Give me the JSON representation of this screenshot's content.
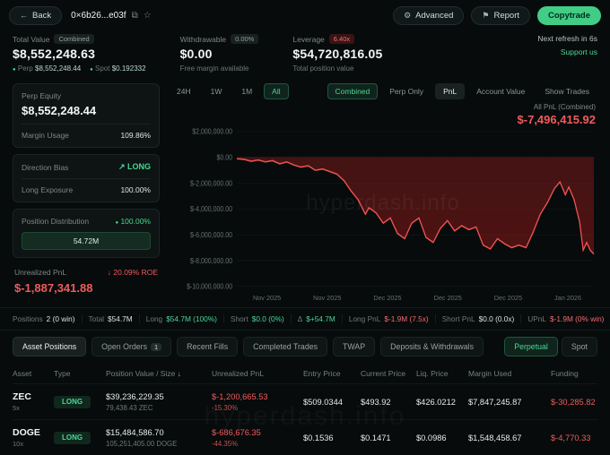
{
  "watermark": "hyperdash.info",
  "topbar": {
    "back": "Back",
    "address": "0×6b26...e03f",
    "advanced": "Advanced",
    "report": "Report",
    "copytrade": "Copytrade"
  },
  "stats": {
    "total_value": {
      "label": "Total Value",
      "tag": "Combined",
      "value": "$8,552,248.63",
      "perp_label": "Perp",
      "perp_value": "$8,552,248.44",
      "spot_label": "Spot",
      "spot_value": "$0.192332"
    },
    "withdrawable": {
      "label": "Withdrawable",
      "tag": "0.00%",
      "value": "$0.00",
      "sub": "Free margin available"
    },
    "leverage": {
      "label": "Leverage",
      "tag": "6.40x",
      "value": "$54,720,816.05",
      "sub": "Total position value"
    },
    "refresh": "Next refresh in 6s",
    "support": "Support us"
  },
  "sidebar": {
    "perp_equity_label": "Perp Equity",
    "perp_equity_value": "$8,552,248.44",
    "margin_usage_label": "Margin Usage",
    "margin_usage_value": "109.86%",
    "direction_label": "Direction Bias",
    "direction_value": "LONG",
    "long_exposure_label": "Long Exposure",
    "long_exposure_value": "100.00%",
    "distribution_label": "Position Distribution",
    "distribution_value": "100.00%",
    "distribution_bar": "54.72M",
    "upnl_label": "Unrealized PnL",
    "upnl_roe": "20.09% ROE",
    "upnl_value": "$-1,887,341.88"
  },
  "chart": {
    "timeframes": [
      "24H",
      "1W",
      "1M",
      "All"
    ],
    "active_timeframe": "All",
    "modes": [
      {
        "label": "Combined",
        "style": "green"
      },
      {
        "label": "Perp Only",
        "style": "plain"
      },
      {
        "label": "PnL",
        "style": "gray"
      },
      {
        "label": "Account Value",
        "style": "plain"
      },
      {
        "label": "Show Trades",
        "style": "plain"
      }
    ],
    "pnl_label": "All PnL (Combined)",
    "pnl_value": "$-7,496,415.92"
  },
  "chart_data": {
    "type": "area",
    "title": "All PnL (Combined)",
    "unit": "USD_millions",
    "ylim": [
      -10,
      2
    ],
    "yticks": [
      {
        "v": 2,
        "label": "$2,000,000.00"
      },
      {
        "v": 0,
        "label": "$0.00"
      },
      {
        "v": -2,
        "label": "$-2,000,000.00"
      },
      {
        "v": -4,
        "label": "$-4,000,000.00"
      },
      {
        "v": -6,
        "label": "$-6,000,000.00"
      },
      {
        "v": -8,
        "label": "$-8,000,000.00"
      },
      {
        "v": -10,
        "label": "$-10,000,000.00"
      }
    ],
    "xticks": [
      "Nov 2025",
      "Nov 2025",
      "Dec 2025",
      "Dec 2025",
      "Dec 2025",
      "Jan 2026"
    ],
    "series": [
      {
        "name": "All PnL (Combined)",
        "color": "#ef5350",
        "final_value_usd": -7496415.92,
        "points": [
          [
            0,
            -0.1
          ],
          [
            2,
            -0.15
          ],
          [
            4,
            -0.3
          ],
          [
            6,
            -0.2
          ],
          [
            8,
            -0.35
          ],
          [
            10,
            -0.25
          ],
          [
            12,
            -0.5
          ],
          [
            14,
            -0.35
          ],
          [
            16,
            -0.6
          ],
          [
            18,
            -0.75
          ],
          [
            20,
            -0.65
          ],
          [
            22,
            -1.0
          ],
          [
            24,
            -0.9
          ],
          [
            26,
            -1.1
          ],
          [
            28,
            -1.3
          ],
          [
            30,
            -1.8
          ],
          [
            32,
            -2.6
          ],
          [
            34,
            -3.3
          ],
          [
            36,
            -4.4
          ],
          [
            37,
            -3.9
          ],
          [
            39,
            -4.3
          ],
          [
            41,
            -5.1
          ],
          [
            43,
            -4.7
          ],
          [
            45,
            -5.9
          ],
          [
            47,
            -6.3
          ],
          [
            49,
            -5.1
          ],
          [
            51,
            -4.7
          ],
          [
            53,
            -6.2
          ],
          [
            55,
            -6.6
          ],
          [
            57,
            -5.5
          ],
          [
            59,
            -4.9
          ],
          [
            61,
            -5.7
          ],
          [
            63,
            -5.3
          ],
          [
            65,
            -5.6
          ],
          [
            67,
            -5.4
          ],
          [
            69,
            -6.8
          ],
          [
            71,
            -7.1
          ],
          [
            73,
            -6.3
          ],
          [
            75,
            -6.7
          ],
          [
            77,
            -7.0
          ],
          [
            79,
            -6.8
          ],
          [
            81,
            -7.0
          ],
          [
            83,
            -5.8
          ],
          [
            85,
            -4.4
          ],
          [
            87,
            -3.5
          ],
          [
            89,
            -2.4
          ],
          [
            90.5,
            -1.9
          ],
          [
            92,
            -2.9
          ],
          [
            93,
            -2.3
          ],
          [
            94.5,
            -3.3
          ],
          [
            96,
            -5.0
          ],
          [
            97,
            -7.2
          ],
          [
            98,
            -6.6
          ],
          [
            99,
            -7.2
          ],
          [
            100,
            -7.5
          ]
        ]
      }
    ]
  },
  "summary": {
    "items": [
      {
        "label": "Positions",
        "value": "2 (0 win)",
        "color": "white"
      },
      {
        "label": "Total",
        "value": "$54.7M",
        "color": "white"
      },
      {
        "label": "Long",
        "value": "$54.7M (100%)",
        "color": "green"
      },
      {
        "label": "Short",
        "value": "$0.0 (0%)",
        "color": "green"
      },
      {
        "label": "Δ",
        "value": "$+54.7M",
        "color": "green"
      },
      {
        "label": "Long PnL",
        "value": "$-1.9M (7.5x)",
        "color": "red"
      },
      {
        "label": "Short PnL",
        "value": "$0.0 (0.0x)",
        "color": "white"
      },
      {
        "label": "UPnL",
        "value": "$-1.9M (0% win)",
        "color": "red"
      }
    ]
  },
  "tabs": {
    "items": [
      {
        "label": "Asset Positions",
        "active": true,
        "badge": ""
      },
      {
        "label": "Open Orders",
        "active": false,
        "badge": "1"
      },
      {
        "label": "Recent Fills",
        "active": false,
        "badge": ""
      },
      {
        "label": "Completed Trades",
        "active": false,
        "badge": ""
      },
      {
        "label": "TWAP",
        "active": false,
        "badge": ""
      },
      {
        "label": "Deposits & Withdrawals",
        "active": false,
        "badge": ""
      }
    ],
    "market_toggle": [
      {
        "label": "Perpetual",
        "active": true
      },
      {
        "label": "Spot",
        "active": false
      }
    ]
  },
  "table": {
    "columns": [
      "Asset",
      "Type",
      "Position Value / Size",
      "Unrealized PnL",
      "Entry Price",
      "Current Price",
      "Liq. Price",
      "Margin Used",
      "Funding"
    ],
    "sort_column_index": 2,
    "sort_icon": "↓",
    "rows": [
      {
        "asset": "ZEC",
        "leverage": "5x",
        "type": "LONG",
        "value": "$39,236,229.35",
        "size": "79,438.43 ZEC",
        "upnl": "$-1,200,665.53",
        "upnl_pct": "-15.30%",
        "entry": "$509.0344",
        "current": "$493.92",
        "liq": "$426.0212",
        "margin": "$7,847,245.87",
        "funding": "$-30,285.82"
      },
      {
        "asset": "DOGE",
        "leverage": "10x",
        "type": "LONG",
        "value": "$15,484,586.70",
        "size": "105,251,405.00 DOGE",
        "upnl": "$-686,676.35",
        "upnl_pct": "-44.35%",
        "entry": "$0.1536",
        "current": "$0.1471",
        "liq": "$0.0986",
        "margin": "$1,548,458.67",
        "funding": "$-4,770.33"
      }
    ]
  },
  "icons": {
    "back": "←",
    "copy": "⧉",
    "star": "☆",
    "gear": "⚙",
    "flag": "⚑",
    "trend_up": "↗",
    "arrow_down": "↓",
    "dot": "●"
  }
}
